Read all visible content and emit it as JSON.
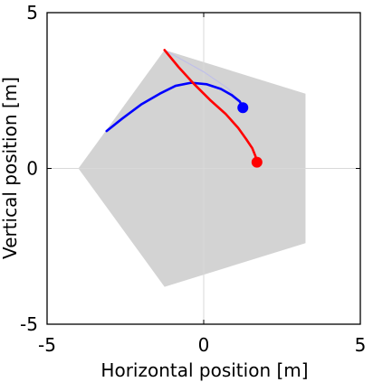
{
  "chart_data": {
    "type": "line",
    "xlabel": "Horizontal position [m]",
    "ylabel": "Vertical position [m]",
    "xlim": [
      -5,
      5
    ],
    "ylim": [
      -5,
      5
    ],
    "x_ticks": [
      -5,
      0,
      5
    ],
    "y_ticks": [
      -5,
      0,
      5
    ],
    "x_tick_labels": [
      "-5",
      "0",
      "5"
    ],
    "y_tick_labels": [
      "-5",
      "0",
      "5"
    ],
    "grid": "zero lines only",
    "region": {
      "fill": "#d3d3d3",
      "points": [
        [
          -1.25,
          3.8
        ],
        [
          3.25,
          2.4
        ],
        [
          3.25,
          -2.4
        ],
        [
          -1.25,
          -3.8
        ],
        [
          -4.0,
          0.0
        ]
      ]
    },
    "series": [
      {
        "color": "#0000ff",
        "x": [
          -3.1,
          -2.6,
          -2.0,
          -1.4,
          -0.9,
          -0.4,
          0.1,
          0.55,
          0.9,
          1.15,
          1.25
        ],
        "y": [
          1.2,
          1.6,
          2.05,
          2.4,
          2.65,
          2.75,
          2.7,
          2.55,
          2.35,
          2.15,
          1.95
        ],
        "end_marker": [
          1.25,
          1.95
        ]
      },
      {
        "color": "#ff0000",
        "x": [
          -1.25,
          -0.8,
          -0.3,
          0.2,
          0.7,
          1.1,
          1.35,
          1.55,
          1.65,
          1.7
        ],
        "y": [
          3.8,
          3.25,
          2.7,
          2.2,
          1.75,
          1.3,
          0.95,
          0.65,
          0.4,
          0.2
        ],
        "end_marker": [
          1.7,
          0.2
        ]
      }
    ],
    "faint_trail": {
      "color": "#c0c0e8",
      "points": [
        [
          -1.25,
          3.8
        ],
        [
          0.0,
          3.1
        ],
        [
          0.8,
          2.55
        ],
        [
          1.25,
          1.95
        ]
      ]
    }
  }
}
